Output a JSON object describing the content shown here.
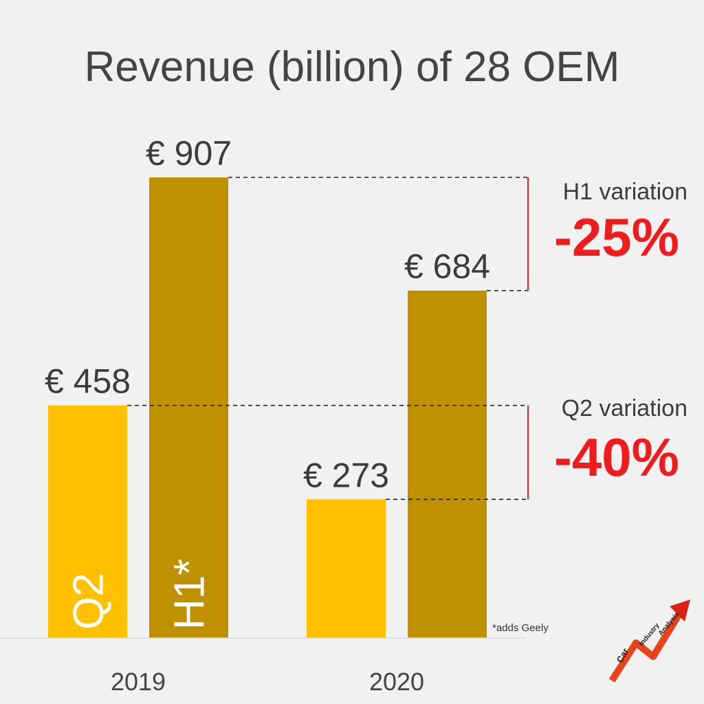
{
  "chart_data": {
    "type": "bar",
    "title": "Revenue (billion) of 28 OEM",
    "categories": [
      "2019",
      "2020"
    ],
    "series": [
      {
        "name": "Q2",
        "values": [
          458,
          273
        ],
        "labels": [
          "€ 458",
          "€ 273"
        ],
        "color": "#FFC000"
      },
      {
        "name": "H1*",
        "values": [
          907,
          684
        ],
        "labels": [
          "€ 907",
          "€ 684"
        ],
        "color": "#BF9000"
      }
    ],
    "ylim": [
      0,
      1000
    ],
    "grid": false,
    "annotations": [
      {
        "label": "H1 variation",
        "value": "-25%",
        "from_series": "H1*"
      },
      {
        "label": "Q2 variation",
        "value": "-40%",
        "from_series": "Q2"
      }
    ],
    "footnote": "*adds Geely"
  },
  "logo": {
    "words": [
      "Car",
      "Industry",
      "Analysis"
    ]
  },
  "colors": {
    "accent": "#ee1c1c",
    "text": "#444444",
    "background": "#f2f1f1"
  }
}
